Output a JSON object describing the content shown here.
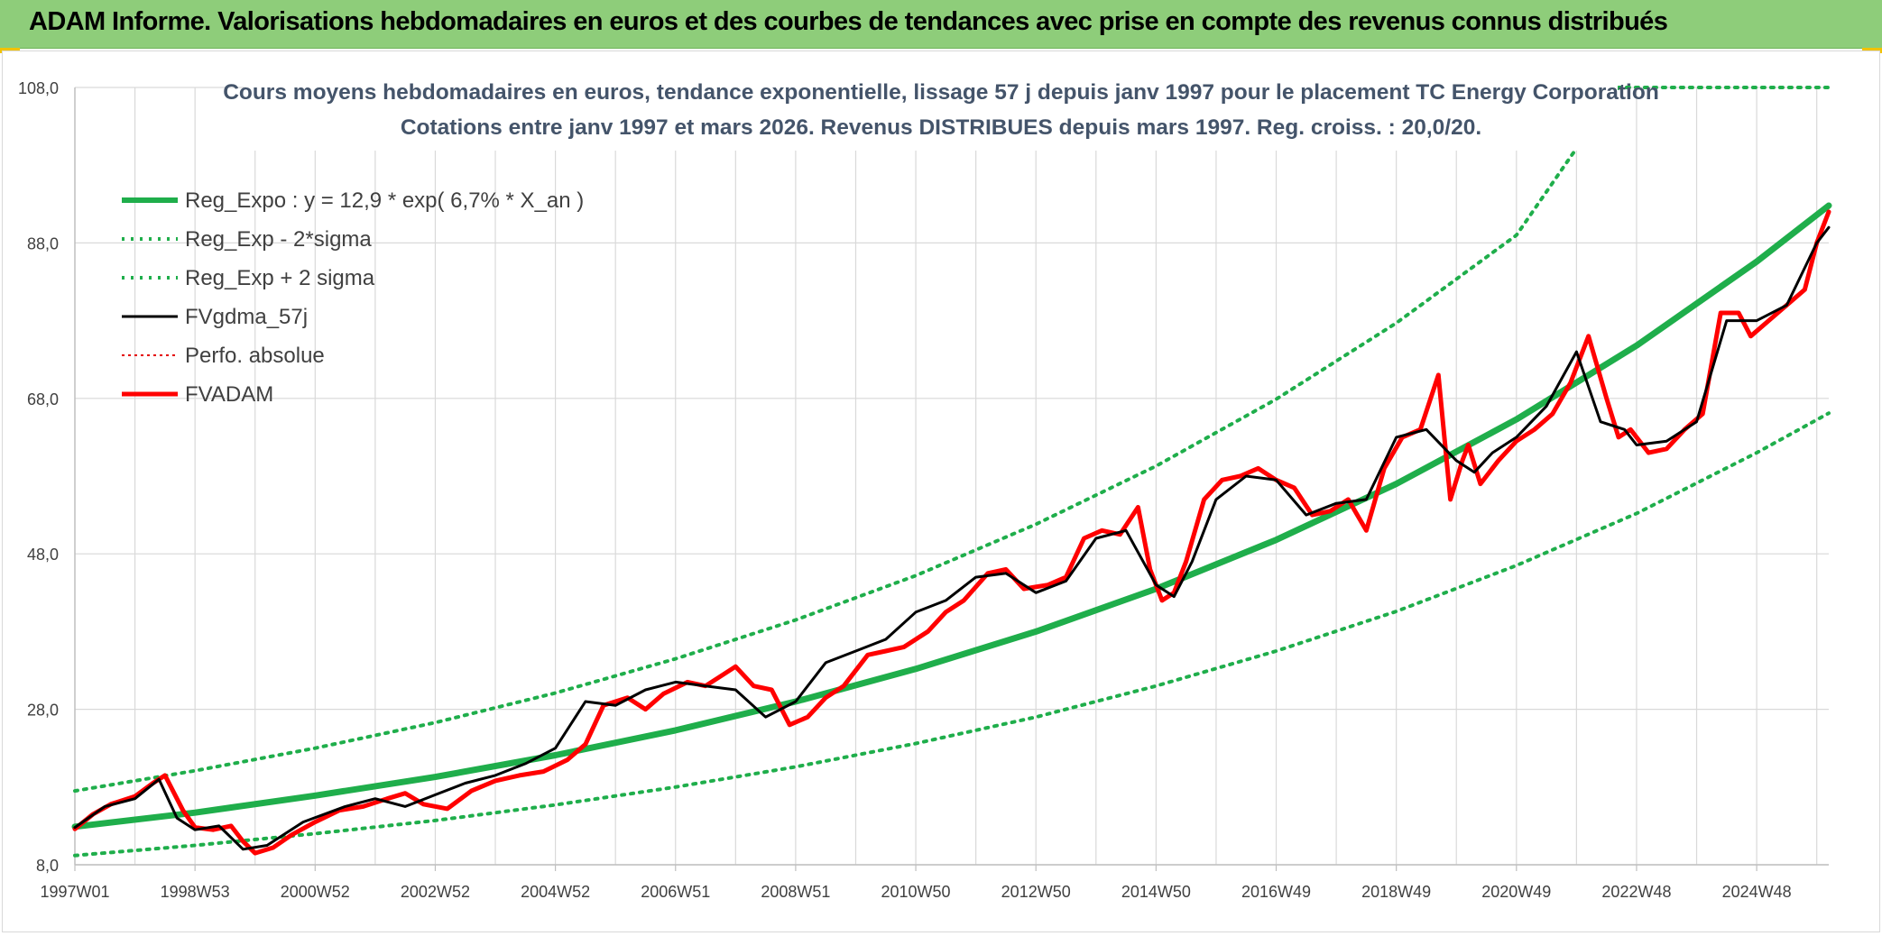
{
  "banner": {
    "title": "ADAM Informe. Valorisations hebdomadaires en euros et des courbes de tendances avec prise en compte des revenus connus distribués"
  },
  "colors": {
    "banner_bg": "#8ecd7a",
    "trend_green": "#1fae4b",
    "sigma_green": "#1fae4b",
    "fvgdma_black": "#000000",
    "perfo_red": "#e40000",
    "fvadam_red": "#ff0000",
    "title_color": "#44546a",
    "corner_accent": "#f2c200"
  },
  "chart_data": {
    "type": "line",
    "title_line1": "Cours moyens hebdomadaires en euros, tendance exponentielle, lissage 57 j depuis janv 1997 pour le placement TC Energy Corporation",
    "title_line2": "Cotations entre janv 1997 et mars 2026. Revenus DISTRIBUES depuis mars 1997. Reg. croiss. : 20,0/20.",
    "x_axis": {
      "start_year": 1997.0,
      "end_year": 2026.2,
      "tick_labels": [
        "1997W01",
        "1998W53",
        "2000W52",
        "2002W52",
        "2004W52",
        "2006W51",
        "2008W51",
        "2010W50",
        "2012W50",
        "2014W50",
        "2016W49",
        "2018W49",
        "2020W49",
        "2022W48",
        "2024W48"
      ],
      "tick_years": [
        1997.0,
        1999.0,
        2001.0,
        2003.0,
        2005.0,
        2007.0,
        2009.0,
        2011.0,
        2013.0,
        2015.0,
        2017.0,
        2019.0,
        2021.0,
        2023.0,
        2025.0
      ]
    },
    "y_axis": {
      "min": 8.0,
      "max": 108.0,
      "tick_values": [
        8.0,
        28.0,
        48.0,
        68.0,
        88.0,
        108.0
      ],
      "tick_labels": [
        "8,0",
        "28,0",
        "48,0",
        "68,0",
        "88,0",
        "108,0"
      ]
    },
    "gridlines": true,
    "legend_position": "top-left",
    "series": [
      {
        "name": "Reg_Expo : y = 12,9 * exp( 6,7% *  X_an )",
        "style": "solid-thick",
        "x": [
          1997.0,
          1999.0,
          2001.0,
          2003.0,
          2005.0,
          2007.0,
          2009.0,
          2011.0,
          2013.0,
          2015.0,
          2017.0,
          2019.0,
          2021.0,
          2023.0,
          2025.0,
          2026.2
        ],
        "y": [
          12.9,
          14.7,
          16.9,
          19.3,
          22.1,
          25.3,
          29.0,
          33.2,
          38.0,
          43.5,
          49.8,
          57.0,
          65.3,
          74.8,
          85.6,
          92.8
        ]
      },
      {
        "name": "Reg_Exp - 2*sigma",
        "style": "dotted",
        "x": [
          1997.0,
          1999.0,
          2001.0,
          2003.0,
          2005.0,
          2007.0,
          2009.0,
          2011.0,
          2013.0,
          2015.0,
          2017.0,
          2019.0,
          2021.0,
          2023.0,
          2025.0,
          2026.2
        ],
        "y": [
          9.2,
          10.5,
          12.0,
          13.7,
          15.7,
          18.0,
          20.6,
          23.6,
          27.0,
          31.0,
          35.5,
          40.6,
          46.5,
          53.2,
          61.0,
          66.1
        ]
      },
      {
        "name": "Reg_Exp + 2 sigma",
        "style": "dotted",
        "x": [
          1997.0,
          1999.0,
          2001.0,
          2003.0,
          2005.0,
          2007.0,
          2009.0,
          2011.0,
          2013.0,
          2015.0,
          2017.0,
          2019.0,
          2021.0,
          2022.7,
          2023.0,
          2025.0,
          2026.2
        ],
        "y": [
          17.5,
          20.1,
          23.0,
          26.3,
          30.1,
          34.5,
          39.5,
          45.2,
          51.8,
          59.3,
          67.9,
          77.7,
          89.0,
          110.0,
          110.0,
          110.0,
          110.0
        ]
      },
      {
        "name": "FVgdma_57j",
        "style": "solid-thin",
        "x": [
          1997.0,
          1997.5,
          1998.0,
          1998.4,
          1998.7,
          1999.0,
          1999.4,
          1999.8,
          2000.2,
          2000.8,
          2001.5,
          2002.0,
          2002.5,
          2003.0,
          2003.5,
          2004.0,
          2004.5,
          2005.0,
          2005.5,
          2006.0,
          2006.5,
          2007.0,
          2007.5,
          2008.0,
          2008.5,
          2009.0,
          2009.5,
          2010.0,
          2010.5,
          2011.0,
          2011.5,
          2012.0,
          2012.5,
          2013.0,
          2013.5,
          2014.0,
          2014.5,
          2015.0,
          2015.3,
          2015.6,
          2016.0,
          2016.5,
          2017.0,
          2017.5,
          2018.0,
          2018.5,
          2019.0,
          2019.5,
          2020.0,
          2020.3,
          2020.6,
          2021.0,
          2021.5,
          2022.0,
          2022.4,
          2022.8,
          2023.0,
          2023.5,
          2024.0,
          2024.5,
          2025.0,
          2025.5,
          2026.0,
          2026.2
        ],
        "y": [
          12.8,
          15.5,
          16.5,
          19.0,
          14.0,
          12.5,
          13.0,
          10.0,
          10.5,
          13.5,
          15.5,
          16.5,
          15.5,
          17.0,
          18.5,
          19.5,
          21.0,
          23.0,
          29.0,
          28.5,
          30.5,
          31.5,
          31.0,
          30.5,
          27.0,
          29.0,
          34.0,
          35.5,
          37.0,
          40.5,
          42.0,
          45.0,
          45.5,
          43.0,
          44.5,
          50.0,
          51.0,
          44.0,
          42.5,
          47.0,
          55.0,
          58.0,
          57.5,
          53.0,
          54.5,
          55.0,
          63.0,
          64.0,
          60.0,
          58.5,
          61.0,
          63.0,
          67.0,
          74.0,
          65.0,
          64.0,
          62.0,
          62.5,
          65.0,
          78.0,
          78.0,
          80.0,
          88.0,
          90.0
        ]
      },
      {
        "name": "Perfo. absolue",
        "style": "dotted-thin",
        "x": [],
        "y": []
      },
      {
        "name": "FVADAM",
        "style": "solid-thick",
        "x": [
          1997.0,
          1997.3,
          1997.6,
          1998.0,
          1998.3,
          1998.5,
          1998.8,
          1999.0,
          1999.3,
          1999.6,
          1999.8,
          2000.0,
          2000.3,
          2000.6,
          2001.0,
          2001.4,
          2001.8,
          2002.2,
          2002.5,
          2002.8,
          2003.2,
          2003.6,
          2004.0,
          2004.4,
          2004.8,
          2005.2,
          2005.5,
          2005.8,
          2006.2,
          2006.5,
          2006.8,
          2007.2,
          2007.5,
          2007.8,
          2008.0,
          2008.3,
          2008.6,
          2008.9,
          2009.2,
          2009.5,
          2009.8,
          2010.2,
          2010.5,
          2010.8,
          2011.2,
          2011.5,
          2011.8,
          2012.2,
          2012.5,
          2012.8,
          2013.2,
          2013.5,
          2013.8,
          2014.1,
          2014.4,
          2014.7,
          2014.9,
          2015.1,
          2015.3,
          2015.5,
          2015.8,
          2016.1,
          2016.4,
          2016.7,
          2017.0,
          2017.3,
          2017.6,
          2017.9,
          2018.2,
          2018.5,
          2018.8,
          2019.1,
          2019.4,
          2019.7,
          2019.9,
          2020.1,
          2020.2,
          2020.4,
          2020.7,
          2021.0,
          2021.3,
          2021.6,
          2021.9,
          2022.2,
          2022.5,
          2022.7,
          2022.9,
          2023.2,
          2023.5,
          2023.8,
          2024.1,
          2024.4,
          2024.7,
          2024.9,
          2025.2,
          2025.5,
          2025.8,
          2026.0,
          2026.2
        ],
        "y": [
          12.6,
          14.5,
          15.8,
          16.8,
          18.5,
          19.5,
          15.0,
          12.8,
          12.5,
          13.0,
          11.0,
          9.5,
          10.2,
          11.8,
          13.5,
          15.0,
          15.5,
          16.5,
          17.2,
          15.8,
          15.2,
          17.5,
          18.8,
          19.5,
          20.0,
          21.5,
          23.5,
          28.5,
          29.5,
          28.0,
          30.0,
          31.5,
          31.0,
          32.5,
          33.5,
          31.0,
          30.5,
          26.0,
          27.0,
          29.5,
          31.0,
          35.0,
          35.5,
          36.0,
          38.0,
          40.5,
          42.0,
          45.5,
          46.0,
          43.5,
          44.0,
          45.0,
          50.0,
          51.0,
          50.5,
          54.0,
          46.0,
          42.0,
          43.0,
          47.0,
          55.0,
          57.5,
          58.0,
          59.0,
          57.5,
          56.5,
          53.0,
          53.5,
          55.0,
          51.0,
          59.0,
          63.0,
          64.0,
          71.0,
          55.0,
          60.0,
          62.0,
          57.0,
          60.0,
          62.5,
          64.0,
          66.0,
          70.0,
          76.0,
          68.0,
          63.0,
          64.0,
          61.0,
          61.5,
          64.0,
          66.0,
          79.0,
          79.0,
          76.0,
          78.0,
          80.0,
          82.0,
          88.0,
          92.0
        ]
      }
    ]
  }
}
